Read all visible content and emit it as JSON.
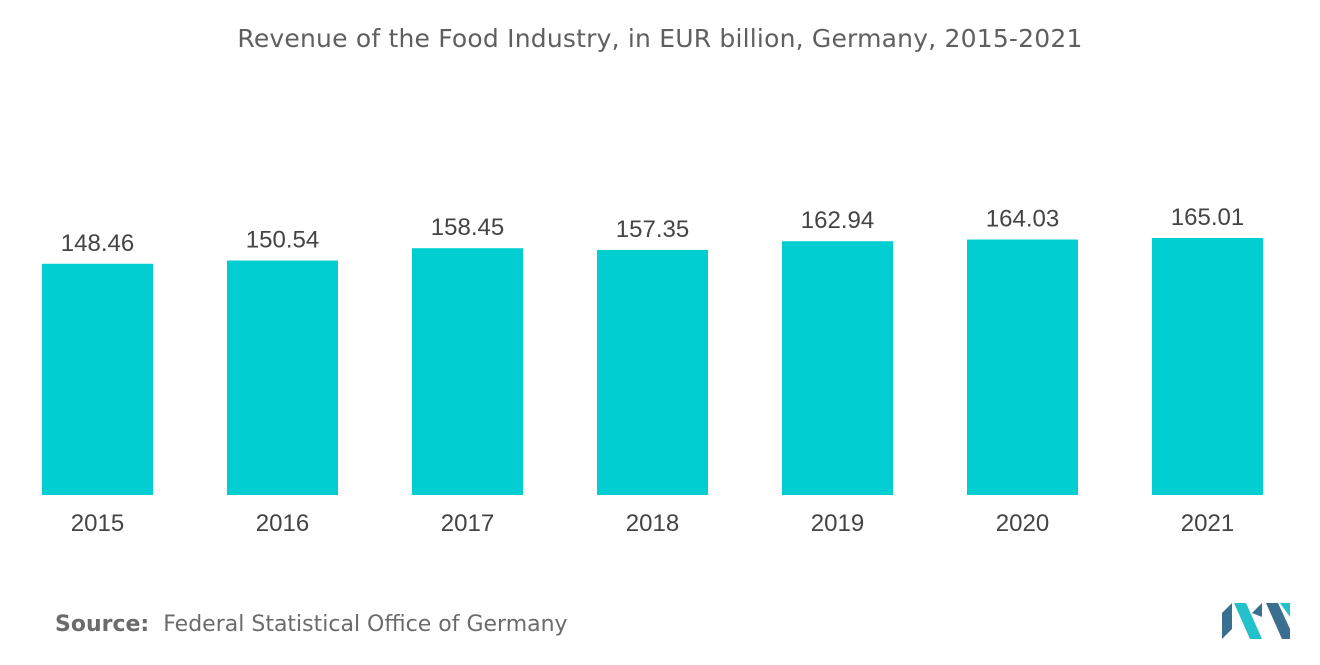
{
  "chart_data": {
    "type": "bar",
    "title": "Revenue of the Food Industry, in EUR billion, Germany, 2015-2021",
    "categories": [
      "2015",
      "2016",
      "2017",
      "2018",
      "2019",
      "2020",
      "2021"
    ],
    "values": [
      148.46,
      150.54,
      158.45,
      157.35,
      162.94,
      164.03,
      165.01
    ],
    "value_labels": [
      "148.46",
      "150.54",
      "158.45",
      "157.35",
      "162.94",
      "164.03",
      "165.01"
    ],
    "xlabel": "",
    "ylabel": "",
    "ylim": [
      0,
      165.01
    ],
    "grid": false,
    "legend": "none",
    "bar_color": "#00CED1"
  },
  "footer": {
    "source_label": "Source:",
    "source_text": "Federal Statistical Office of Germany"
  },
  "colors": {
    "bar": "#00CED1",
    "text": "#5f5f5f",
    "logo_dark": "#3a6f8f",
    "logo_light": "#23c1c9"
  },
  "logo": {
    "icon": "mordor-intelligence-logo-icon"
  }
}
